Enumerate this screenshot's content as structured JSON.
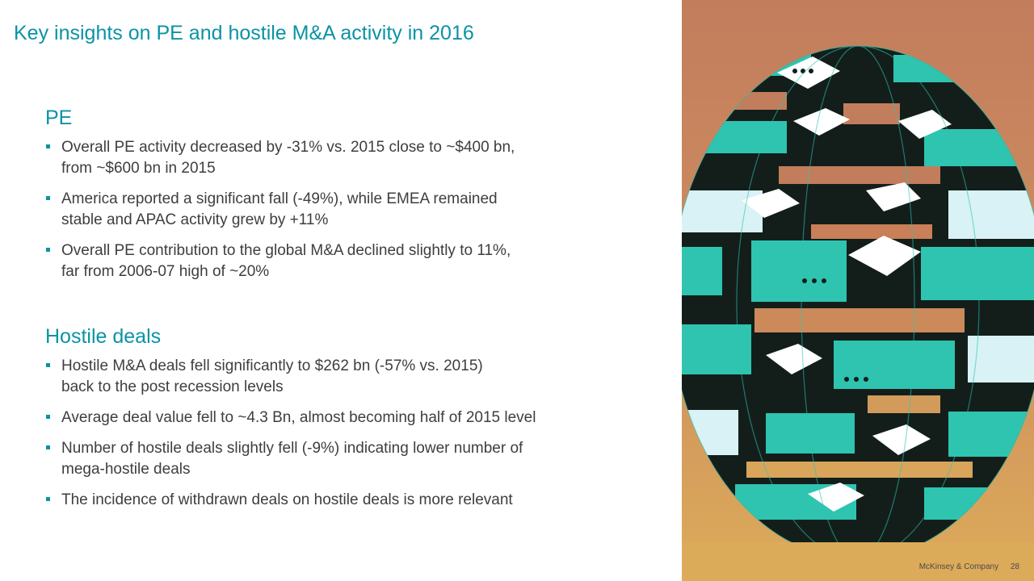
{
  "slide": {
    "title": "Key insights on PE and hostile M&A activity in 2016"
  },
  "sections": {
    "pe": {
      "heading": "PE",
      "bullets": [
        {
          "lines": [
            "Overall PE activity decreased by -31% vs. 2015 close to ~$400 bn,",
            "from ~$600 bn in 2015"
          ]
        },
        {
          "lines": [
            "America reported a significant fall (-49%), while EMEA remained",
            "stable and APAC activity grew by +11%"
          ]
        },
        {
          "lines": [
            "Overall PE contribution to the global M&A declined slightly to 11%,",
            "far from 2006-07 high of ~20%"
          ]
        }
      ]
    },
    "hostile": {
      "heading": "Hostile deals",
      "bullets": [
        {
          "lines": [
            "Hostile M&A deals fell significantly to $262 bn (-57% vs. 2015)",
            "back to the post recession levels"
          ]
        },
        {
          "lines": [
            "Average deal value fell to ~4.3 Bn, almost becoming half of 2015 level"
          ]
        },
        {
          "lines": [
            "Number of hostile deals slightly fell (-9%) indicating lower number of",
            "mega-hostile deals"
          ]
        },
        {
          "lines": [
            "The incidence of withdrawn deals on hostile deals is more relevant"
          ]
        }
      ]
    }
  },
  "footer": {
    "company": "McKinsey & Company",
    "page_number": "28"
  },
  "colors": {
    "accent": "#0a93a6",
    "body_text": "#3e3e3e",
    "art_teal": "#2ec4b0",
    "art_dark": "#131e1b",
    "art_sky": "#c27d5d",
    "art_ground": "#d9a559"
  }
}
